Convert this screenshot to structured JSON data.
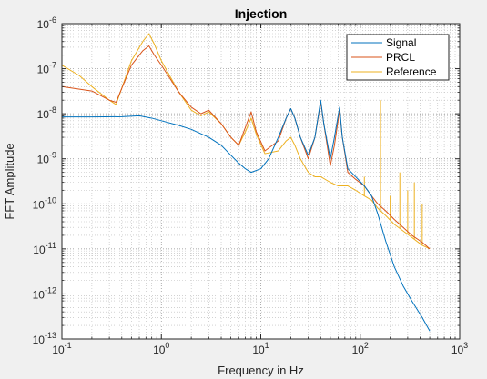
{
  "chart_data": {
    "type": "line",
    "title": "Injection",
    "xlabel": "Frequency in Hz",
    "ylabel": "FFT Amplitude",
    "xscale": "log",
    "yscale": "log",
    "xlim": [
      0.1,
      1000
    ],
    "ylim": [
      1e-13,
      1e-06
    ],
    "grid": "major and minor, dotted",
    "legend_position": "top-right",
    "x_tick_labels": [
      {
        "base": "10",
        "exp": "-1"
      },
      {
        "base": "10",
        "exp": "0"
      },
      {
        "base": "10",
        "exp": "1"
      },
      {
        "base": "10",
        "exp": "2"
      },
      {
        "base": "10",
        "exp": "3"
      }
    ],
    "y_tick_labels": [
      {
        "base": "10",
        "exp": "-13"
      },
      {
        "base": "10",
        "exp": "-12"
      },
      {
        "base": "10",
        "exp": "-11"
      },
      {
        "base": "10",
        "exp": "-10"
      },
      {
        "base": "10",
        "exp": "-9"
      },
      {
        "base": "10",
        "exp": "-8"
      },
      {
        "base": "10",
        "exp": "-7"
      },
      {
        "base": "10",
        "exp": "-6"
      }
    ],
    "series": [
      {
        "name": "Signal",
        "color": "#0072BD",
        "points": [
          [
            0.1,
            8.5e-09
          ],
          [
            0.2,
            8.5e-09
          ],
          [
            0.4,
            8.6e-09
          ],
          [
            0.6,
            9e-09
          ],
          [
            0.8,
            8e-09
          ],
          [
            1.0,
            7e-09
          ],
          [
            1.5,
            5.5e-09
          ],
          [
            2.0,
            4.5e-09
          ],
          [
            3.0,
            3e-09
          ],
          [
            4.0,
            2e-09
          ],
          [
            5.0,
            1.2e-09
          ],
          [
            6.0,
            8e-10
          ],
          [
            7.0,
            6e-10
          ],
          [
            8.0,
            5e-10
          ],
          [
            10.0,
            6e-10
          ],
          [
            12.0,
            1e-09
          ],
          [
            15.0,
            3e-09
          ],
          [
            18.0,
            8e-09
          ],
          [
            20.0,
            1.3e-08
          ],
          [
            22.0,
            8e-09
          ],
          [
            25.0,
            3e-09
          ],
          [
            30.0,
            1.2e-09
          ],
          [
            35.0,
            3e-09
          ],
          [
            40.0,
            2e-08
          ],
          [
            43.0,
            6e-09
          ],
          [
            50.0,
            1e-09
          ],
          [
            55.0,
            3e-09
          ],
          [
            62.0,
            1.4e-08
          ],
          [
            66.0,
            3e-09
          ],
          [
            75.0,
            6e-10
          ],
          [
            90.0,
            4e-10
          ],
          [
            110.0,
            2.5e-10
          ],
          [
            130.0,
            1.5e-10
          ],
          [
            150.0,
            6e-11
          ],
          [
            180.0,
            1.5e-11
          ],
          [
            220.0,
            4e-12
          ],
          [
            270.0,
            1.5e-12
          ],
          [
            330.0,
            7e-13
          ],
          [
            420.0,
            3e-13
          ],
          [
            500.0,
            1.5e-13
          ]
        ]
      },
      {
        "name": "PRCL",
        "color": "#D95319",
        "points": [
          [
            0.1,
            4e-08
          ],
          [
            0.2,
            3.2e-08
          ],
          [
            0.3,
            2e-08
          ],
          [
            0.35,
            1.8e-08
          ],
          [
            0.5,
            1.2e-07
          ],
          [
            0.65,
            2.5e-07
          ],
          [
            0.75,
            3.2e-07
          ],
          [
            0.85,
            2e-07
          ],
          [
            1.0,
            1.2e-07
          ],
          [
            1.5,
            3e-08
          ],
          [
            2.0,
            1.4e-08
          ],
          [
            2.5,
            1e-08
          ],
          [
            3.0,
            1.2e-08
          ],
          [
            4.0,
            6e-09
          ],
          [
            5.0,
            3e-09
          ],
          [
            6.0,
            2e-09
          ],
          [
            7.0,
            5e-09
          ],
          [
            8.0,
            1.1e-08
          ],
          [
            9.0,
            4e-09
          ],
          [
            11.0,
            1.5e-09
          ],
          [
            15.0,
            2.5e-09
          ],
          [
            18.0,
            8e-09
          ],
          [
            20.0,
            1.3e-08
          ],
          [
            22.0,
            8e-09
          ],
          [
            25.0,
            3e-09
          ],
          [
            30.0,
            1e-09
          ],
          [
            35.0,
            3e-09
          ],
          [
            40.0,
            1.8e-08
          ],
          [
            43.0,
            6e-09
          ],
          [
            50.0,
            7e-10
          ],
          [
            55.0,
            2e-09
          ],
          [
            62.0,
            1.2e-08
          ],
          [
            66.0,
            3e-09
          ],
          [
            75.0,
            5e-10
          ],
          [
            90.0,
            3.5e-10
          ],
          [
            110.0,
            2.5e-10
          ],
          [
            130.0,
            1.5e-10
          ],
          [
            150.0,
            1e-10
          ],
          [
            180.0,
            7e-11
          ],
          [
            220.0,
            4.5e-11
          ],
          [
            270.0,
            3e-11
          ],
          [
            330.0,
            2e-11
          ],
          [
            420.0,
            1.4e-11
          ],
          [
            500.0,
            1e-11
          ]
        ]
      },
      {
        "name": "Reference",
        "color": "#EDB120",
        "points": [
          [
            0.1,
            1.2e-07
          ],
          [
            0.15,
            7e-08
          ],
          [
            0.2,
            4e-08
          ],
          [
            0.3,
            2e-08
          ],
          [
            0.35,
            1.6e-08
          ],
          [
            0.5,
            1.5e-07
          ],
          [
            0.65,
            4e-07
          ],
          [
            0.75,
            6e-07
          ],
          [
            0.85,
            3.5e-07
          ],
          [
            1.0,
            1.5e-07
          ],
          [
            1.5,
            3e-08
          ],
          [
            2.0,
            1.2e-08
          ],
          [
            2.5,
            9e-09
          ],
          [
            3.0,
            1.1e-08
          ],
          [
            4.0,
            6e-09
          ],
          [
            5.0,
            3e-09
          ],
          [
            6.0,
            2e-09
          ],
          [
            7.0,
            4e-09
          ],
          [
            8.0,
            8e-09
          ],
          [
            9.0,
            3.5e-09
          ],
          [
            11.0,
            1.3e-09
          ],
          [
            15.0,
            1.5e-09
          ],
          [
            18.0,
            2.5e-09
          ],
          [
            20.0,
            3e-09
          ],
          [
            22.0,
            2e-09
          ],
          [
            25.0,
            1e-09
          ],
          [
            30.0,
            5e-10
          ],
          [
            35.0,
            4e-10
          ],
          [
            40.0,
            4e-10
          ],
          [
            50.0,
            3e-10
          ],
          [
            60.0,
            2.5e-10
          ],
          [
            75.0,
            2.5e-10
          ],
          [
            90.0,
            2e-10
          ],
          [
            110.0,
            1.5e-10
          ],
          [
            130.0,
            1.2e-10
          ],
          [
            150.0,
            8e-11
          ],
          [
            180.0,
            5.5e-11
          ],
          [
            220.0,
            3.5e-11
          ],
          [
            270.0,
            2.5e-11
          ],
          [
            330.0,
            1.8e-11
          ],
          [
            420.0,
            1.2e-11
          ],
          [
            500.0,
            1e-11
          ]
        ],
        "spikes": [
          [
            110.0,
            4e-10
          ],
          [
            160.0,
            2e-08
          ],
          [
            200.0,
            1.5e-10
          ],
          [
            250.0,
            5e-10
          ],
          [
            300.0,
            2e-10
          ],
          [
            350.0,
            3e-10
          ],
          [
            420.0,
            1e-10
          ]
        ]
      }
    ]
  }
}
